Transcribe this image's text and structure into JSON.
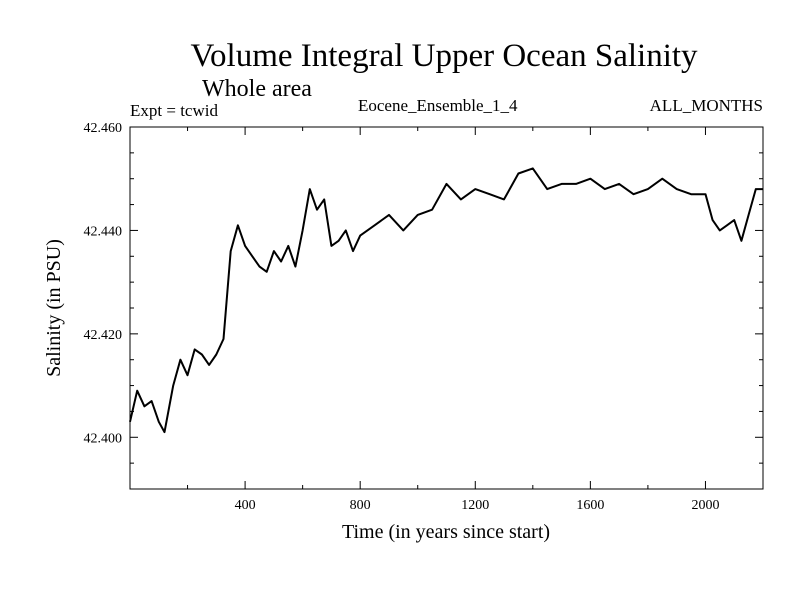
{
  "chart_data": {
    "type": "line",
    "title": "Volume Integral Upper Ocean Salinity",
    "subtitle": "Whole area",
    "annotations": {
      "left": "Expt = tcwid",
      "center": "Eocene_Ensemble_1_4",
      "right": "ALL_MONTHS"
    },
    "xlabel": "Time (in years since start)",
    "ylabel": "Salinity (in PSU)",
    "xlim": [
      0,
      2200
    ],
    "ylim": [
      42.39,
      42.46
    ],
    "xticks": [
      400,
      800,
      1200,
      1600,
      2000
    ],
    "xtick_labels": [
      "400",
      "800",
      "1200",
      "1600",
      "2000"
    ],
    "yticks": [
      42.4,
      42.42,
      42.44,
      42.46
    ],
    "ytick_labels": [
      "42.400",
      "42.420",
      "42.440",
      "42.460"
    ],
    "grid": false,
    "series": [
      {
        "x": [
          0,
          25,
          50,
          75,
          100,
          120,
          150,
          175,
          200,
          225,
          250,
          275,
          300,
          325,
          350,
          375,
          400,
          425,
          450,
          475,
          500,
          525,
          550,
          575,
          600,
          625,
          650,
          675,
          700,
          725,
          750,
          775,
          800,
          850,
          900,
          950,
          1000,
          1050,
          1100,
          1150,
          1200,
          1250,
          1300,
          1350,
          1400,
          1450,
          1500,
          1550,
          1600,
          1650,
          1700,
          1750,
          1800,
          1850,
          1900,
          1950,
          2000,
          2025,
          2050,
          2075,
          2100,
          2125,
          2150,
          2175,
          2200
        ],
        "y": [
          42.403,
          42.409,
          42.406,
          42.407,
          42.403,
          42.401,
          42.41,
          42.415,
          42.412,
          42.417,
          42.416,
          42.414,
          42.416,
          42.419,
          42.436,
          42.441,
          42.437,
          42.435,
          42.433,
          42.432,
          42.436,
          42.434,
          42.437,
          42.433,
          42.44,
          42.448,
          42.444,
          42.446,
          42.437,
          42.438,
          42.44,
          42.436,
          42.439,
          42.441,
          42.443,
          42.44,
          42.443,
          42.444,
          42.449,
          42.446,
          42.448,
          42.447,
          42.446,
          42.451,
          42.452,
          42.448,
          42.449,
          42.449,
          42.45,
          42.448,
          42.449,
          42.447,
          42.448,
          42.45,
          42.448,
          42.447,
          42.447,
          42.442,
          42.44,
          42.441,
          42.442,
          42.438,
          42.443,
          42.448,
          42.448
        ]
      }
    ]
  }
}
